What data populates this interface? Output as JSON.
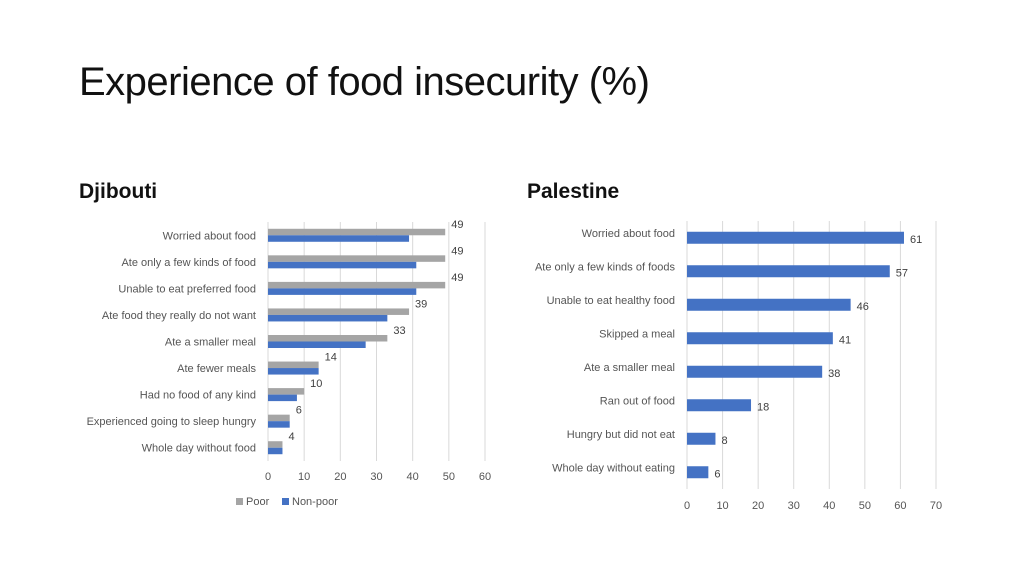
{
  "title": "Experience of food insecurity (%)",
  "colors": {
    "poor": "#a5a5a5",
    "nonpoor": "#4472c4",
    "grid": "#d9d9d9"
  },
  "chart_data": [
    {
      "type": "bar",
      "orientation": "horizontal",
      "title": "Djibouti",
      "categories": [
        "Worried about food",
        "Ate only a few kinds of food",
        "Unable to eat preferred food",
        "Ate food they really do not want",
        "Ate a smaller meal",
        "Ate fewer meals",
        "Had no food of any kind",
        "Experienced going to sleep hungry",
        "Whole day without food"
      ],
      "series": [
        {
          "name": "Poor",
          "values": [
            49,
            49,
            49,
            39,
            33,
            14,
            10,
            6,
            4
          ]
        },
        {
          "name": "Non-poor",
          "values": [
            39,
            41,
            41,
            33,
            27,
            14,
            8,
            6,
            4
          ]
        }
      ],
      "data_labels": [
        49,
        49,
        49,
        39,
        33,
        14,
        10,
        6,
        4
      ],
      "xlim": [
        0,
        60
      ],
      "xticks": [
        0,
        10,
        20,
        30,
        40,
        50,
        60
      ],
      "legend": [
        "Poor",
        "Non-poor"
      ],
      "legend_position": "bottom",
      "grid": true
    },
    {
      "type": "bar",
      "orientation": "horizontal",
      "title": "Palestine",
      "categories": [
        "Worried about food",
        "Ate only a few kinds of foods",
        "Unable to eat healthy food",
        "Skipped a meal",
        "Ate a smaller meal",
        "Ran out of food",
        "Hungry but did not eat",
        "Whole day without eating"
      ],
      "series": [
        {
          "name": "Palestine",
          "values": [
            61,
            57,
            46,
            41,
            38,
            18,
            8,
            6
          ]
        }
      ],
      "data_labels": [
        61,
        57,
        46,
        41,
        38,
        18,
        8,
        6
      ],
      "xlim": [
        0,
        70
      ],
      "xticks": [
        0,
        10,
        20,
        30,
        40,
        50,
        60,
        70
      ],
      "grid": true
    }
  ]
}
